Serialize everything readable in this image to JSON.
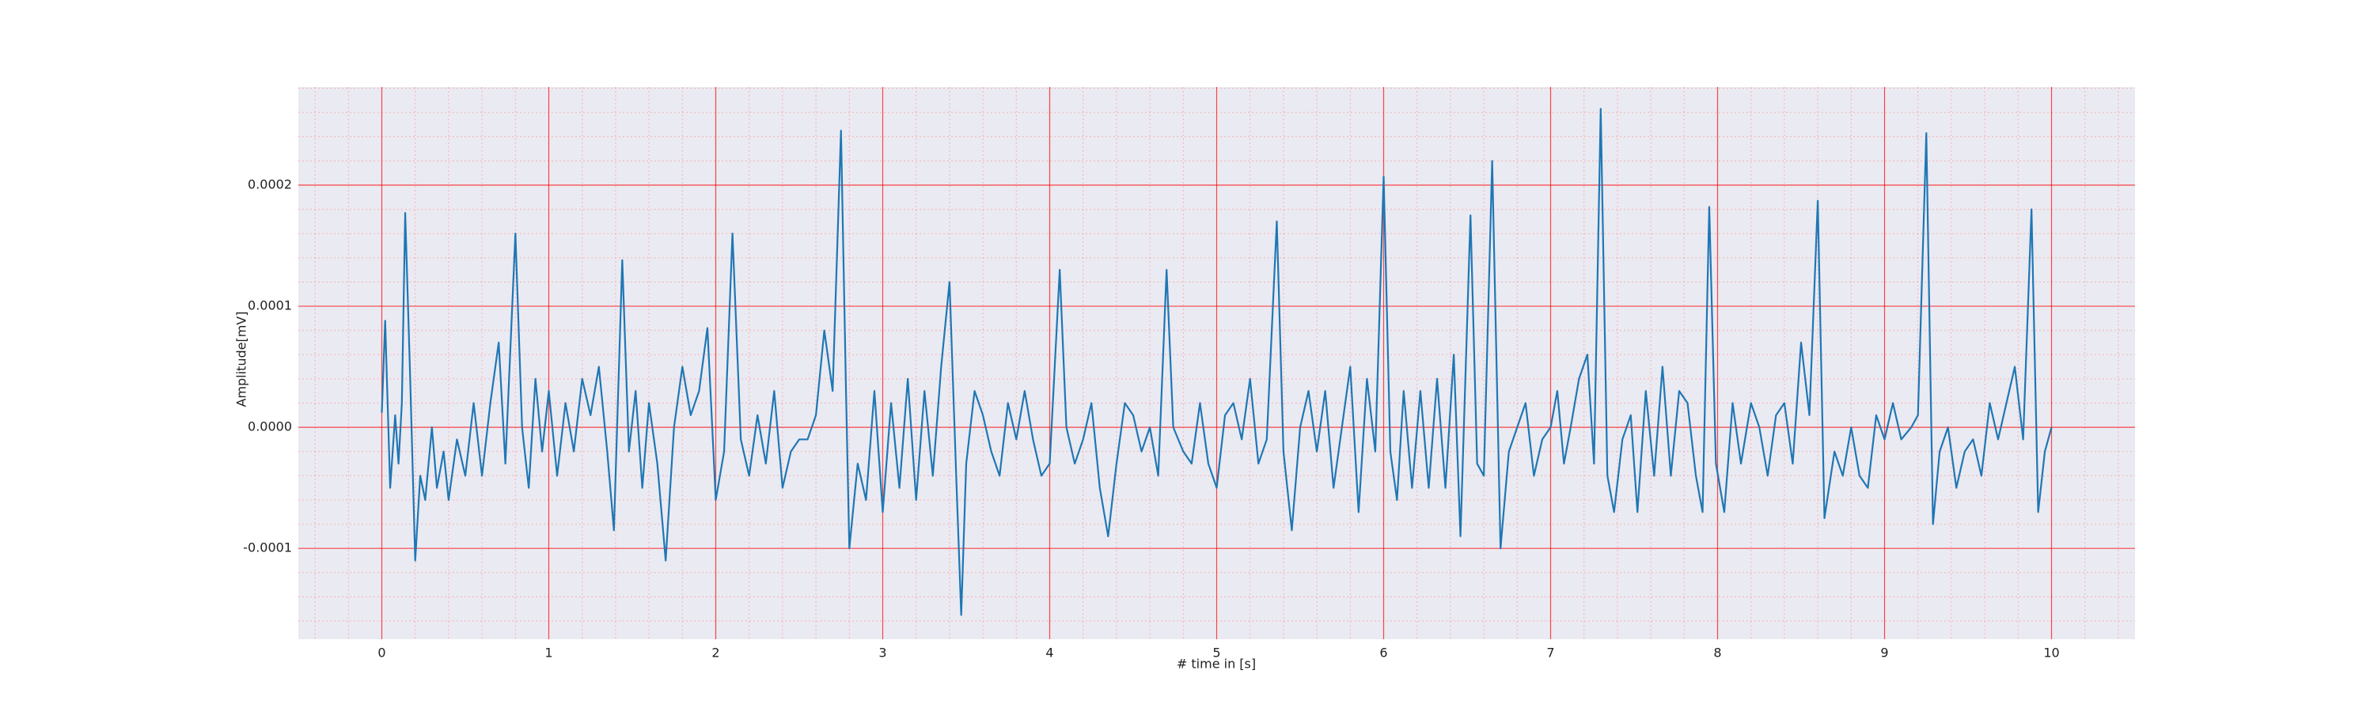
{
  "chart_data": {
    "type": "line",
    "xlabel": "# time in [s]",
    "ylabel": "Amplitude[mV]",
    "color": "#1f77b4",
    "background": "#eaeaf2",
    "grid": true,
    "major_grid_color": "#ff0000",
    "minor_grid_color": "#ff9999",
    "xlim": [
      -0.5,
      10.5
    ],
    "ylim": [
      -0.000175,
      0.000281
    ],
    "xticks": [
      0,
      1,
      2,
      3,
      4,
      5,
      6,
      7,
      8,
      9,
      10
    ],
    "yticks": [
      -0.0001,
      {
        "value": 0,
        "label": "0.0000"
      },
      0.0001,
      0.0002
    ],
    "minor_xticks": [
      -0.4,
      -0.2,
      0.2,
      0.4,
      0.6,
      0.8,
      1.2,
      1.4,
      1.6,
      1.8,
      2.2,
      2.4,
      2.6,
      2.8,
      3.2,
      3.4,
      3.6,
      3.8,
      4.2,
      4.4,
      4.6,
      4.8,
      5.2,
      5.4,
      5.6,
      5.8,
      6.2,
      6.4,
      6.6,
      6.8,
      7.2,
      7.4,
      7.6,
      7.8,
      8.2,
      8.4,
      8.6,
      8.8,
      9.2,
      9.4,
      9.6,
      9.8,
      10.2,
      10.4
    ],
    "minor_yticks": [
      -0.00016,
      -0.00014,
      -0.00012,
      -8e-05,
      -6e-05,
      -4e-05,
      -2e-05,
      2e-05,
      4e-05,
      6e-05,
      8e-05,
      0.00012,
      0.00014,
      0.00016,
      0.00018,
      0.00022,
      0.00024,
      0.00026,
      0.00028
    ],
    "x": [
      0,
      0.02,
      0.05,
      0.08,
      0.1,
      0.12,
      0.14,
      0.17,
      0.2,
      0.23,
      0.26,
      0.3,
      0.33,
      0.37,
      0.4,
      0.45,
      0.5,
      0.55,
      0.6,
      0.65,
      0.7,
      0.74,
      0.8,
      0.84,
      0.88,
      0.92,
      0.96,
      1.0,
      1.05,
      1.1,
      1.15,
      1.2,
      1.25,
      1.3,
      1.35,
      1.39,
      1.44,
      1.48,
      1.52,
      1.56,
      1.6,
      1.65,
      1.7,
      1.75,
      1.8,
      1.85,
      1.9,
      1.95,
      2.0,
      2.05,
      2.1,
      2.15,
      2.2,
      2.25,
      2.3,
      2.35,
      2.4,
      2.45,
      2.5,
      2.55,
      2.6,
      2.65,
      2.7,
      2.75,
      2.78,
      2.8,
      2.85,
      2.9,
      2.95,
      3.0,
      3.05,
      3.1,
      3.15,
      3.2,
      3.25,
      3.3,
      3.35,
      3.4,
      3.44,
      3.47,
      3.5,
      3.55,
      3.6,
      3.65,
      3.7,
      3.75,
      3.8,
      3.85,
      3.9,
      3.95,
      4.0,
      4.06,
      4.1,
      4.15,
      4.2,
      4.25,
      4.3,
      4.35,
      4.4,
      4.45,
      4.5,
      4.55,
      4.6,
      4.65,
      4.7,
      4.74,
      4.8,
      4.85,
      4.9,
      4.95,
      5.0,
      5.05,
      5.1,
      5.15,
      5.2,
      5.25,
      5.3,
      5.36,
      5.4,
      5.45,
      5.5,
      5.55,
      5.6,
      5.65,
      5.7,
      5.75,
      5.8,
      5.85,
      5.9,
      5.95,
      6.0,
      6.04,
      6.08,
      6.12,
      6.17,
      6.22,
      6.27,
      6.32,
      6.37,
      6.42,
      6.46,
      6.52,
      6.56,
      6.6,
      6.65,
      6.7,
      6.75,
      6.8,
      6.85,
      6.9,
      6.95,
      7.0,
      7.04,
      7.08,
      7.12,
      7.17,
      7.22,
      7.26,
      7.3,
      7.34,
      7.38,
      7.43,
      7.48,
      7.52,
      7.57,
      7.62,
      7.67,
      7.72,
      7.77,
      7.82,
      7.87,
      7.91,
      7.95,
      7.99,
      8.04,
      8.09,
      8.14,
      8.2,
      8.25,
      8.3,
      8.35,
      8.4,
      8.45,
      8.5,
      8.55,
      8.6,
      8.64,
      8.7,
      8.75,
      8.8,
      8.85,
      8.9,
      8.95,
      9.0,
      9.05,
      9.1,
      9.16,
      9.2,
      9.25,
      9.29,
      9.33,
      9.38,
      9.43,
      9.48,
      9.53,
      9.58,
      9.63,
      9.68,
      9.73,
      9.78,
      9.83,
      9.88,
      9.92,
      9.96,
      10.0
    ],
    "values": [
      1.2e-05,
      8.8e-05,
      -5e-05,
      1e-05,
      -3e-05,
      2e-05,
      0.000177,
      4e-05,
      -0.00011,
      -4e-05,
      -6e-05,
      0,
      -5e-05,
      -2e-05,
      -6e-05,
      -1e-05,
      -4e-05,
      2e-05,
      -4e-05,
      2e-05,
      7e-05,
      -3e-05,
      0.00016,
      0,
      -5e-05,
      4e-05,
      -2e-05,
      3e-05,
      -4e-05,
      2e-05,
      -2e-05,
      4e-05,
      1e-05,
      5e-05,
      -2e-05,
      -8.5e-05,
      0.000138,
      -2e-05,
      3e-05,
      -5e-05,
      2e-05,
      -3e-05,
      -0.00011,
      0,
      5e-05,
      1e-05,
      3e-05,
      8.2e-05,
      -6e-05,
      -2e-05,
      0.00016,
      -1e-05,
      -4e-05,
      1e-05,
      -3e-05,
      3e-05,
      -5e-05,
      -2e-05,
      -1e-05,
      -1e-05,
      1e-05,
      8e-05,
      3e-05,
      0.000245,
      3e-05,
      -0.0001,
      -3e-05,
      -6e-05,
      3e-05,
      -7e-05,
      2e-05,
      -5e-05,
      4e-05,
      -6e-05,
      3e-05,
      -4e-05,
      5e-05,
      0.00012,
      -4e-05,
      -0.000155,
      -3e-05,
      3e-05,
      1e-05,
      -2e-05,
      -4e-05,
      2e-05,
      -1e-05,
      3e-05,
      -1e-05,
      -4e-05,
      -3e-05,
      0.00013,
      0,
      -3e-05,
      -1e-05,
      2e-05,
      -5e-05,
      -9e-05,
      -3e-05,
      2e-05,
      1e-05,
      -2e-05,
      0,
      -4e-05,
      0.00013,
      0,
      -2e-05,
      -3e-05,
      2e-05,
      -3e-05,
      -5e-05,
      1e-05,
      2e-05,
      -1e-05,
      4e-05,
      -3e-05,
      -1e-05,
      0.00017,
      -2e-05,
      -8.5e-05,
      0,
      3e-05,
      -2e-05,
      3e-05,
      -5e-05,
      0,
      5e-05,
      -7e-05,
      4e-05,
      -2e-05,
      0.000207,
      -2e-05,
      -6e-05,
      3e-05,
      -5e-05,
      3e-05,
      -5e-05,
      4e-05,
      -5e-05,
      6e-05,
      -9e-05,
      0.000175,
      -3e-05,
      -4e-05,
      0.00022,
      -0.0001,
      -2e-05,
      0,
      2e-05,
      -4e-05,
      -1e-05,
      0,
      3e-05,
      -3e-05,
      0,
      4e-05,
      6e-05,
      -3e-05,
      0.000263,
      -4e-05,
      -7e-05,
      -1e-05,
      1e-05,
      -7e-05,
      3e-05,
      -4e-05,
      5e-05,
      -4e-05,
      3e-05,
      2e-05,
      -4e-05,
      -7e-05,
      0.000182,
      -3e-05,
      -7e-05,
      2e-05,
      -3e-05,
      2e-05,
      0,
      -4e-05,
      1e-05,
      2e-05,
      -3e-05,
      7e-05,
      1e-05,
      0.000187,
      -7.5e-05,
      -2e-05,
      -4e-05,
      0,
      -4e-05,
      -5e-05,
      1e-05,
      -1e-05,
      2e-05,
      -1e-05,
      0,
      1e-05,
      0.000243,
      -8e-05,
      -2e-05,
      0,
      -5e-05,
      -2e-05,
      -1e-05,
      -4e-05,
      2e-05,
      -1e-05,
      2e-05,
      5e-05,
      -1e-05,
      0.00018,
      -7e-05,
      -2e-05,
      0
    ]
  }
}
